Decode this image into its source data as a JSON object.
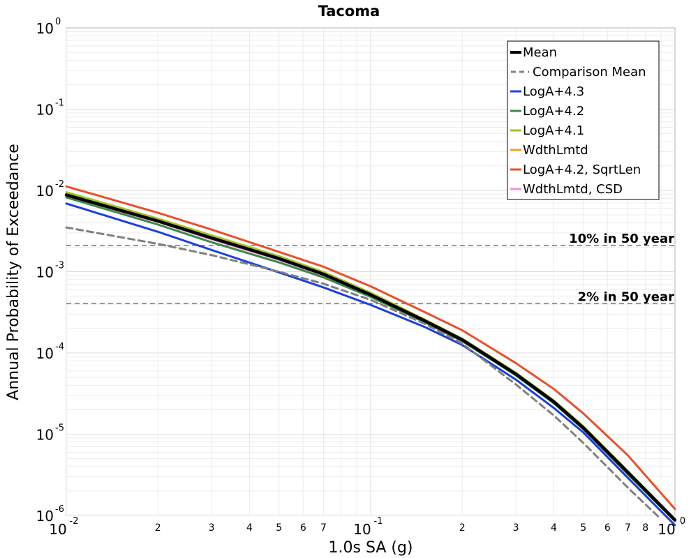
{
  "chart_data": {
    "type": "line",
    "title": "Tacoma",
    "xlabel": "1.0s SA (g)",
    "ylabel": "Annual Probability of Exceedance",
    "xscale": "log",
    "yscale": "log",
    "xlim": [
      0.01,
      1.0
    ],
    "ylim": [
      1e-06,
      1.0
    ],
    "grid": true,
    "legend_position": "top-right",
    "x_major_ticks": [
      {
        "base": "10",
        "exp": "-2",
        "value": 0.01
      },
      {
        "base": "10",
        "exp": "-1",
        "value": 0.1
      },
      {
        "base": "10",
        "exp": "0",
        "value": 1.0
      }
    ],
    "x_minor_ticks": [
      {
        "label": "2",
        "value": 0.02
      },
      {
        "label": "3",
        "value": 0.03
      },
      {
        "label": "4",
        "value": 0.04
      },
      {
        "label": "5",
        "value": 0.05
      },
      {
        "label": "6",
        "value": 0.06
      },
      {
        "label": "7",
        "value": 0.07
      },
      {
        "label": "2",
        "value": 0.2
      },
      {
        "label": "3",
        "value": 0.3
      },
      {
        "label": "4",
        "value": 0.4
      },
      {
        "label": "5",
        "value": 0.5
      },
      {
        "label": "6",
        "value": 0.6
      },
      {
        "label": "7",
        "value": 0.7
      },
      {
        "label": "8",
        "value": 0.8
      }
    ],
    "y_major_ticks": [
      {
        "base": "10",
        "exp": "0",
        "value": 1.0
      },
      {
        "base": "10",
        "exp": "-1",
        "value": 0.1
      },
      {
        "base": "10",
        "exp": "-2",
        "value": 0.01
      },
      {
        "base": "10",
        "exp": "-3",
        "value": 0.001
      },
      {
        "base": "10",
        "exp": "-4",
        "value": 0.0001
      },
      {
        "base": "10",
        "exp": "-5",
        "value": 1e-05
      },
      {
        "base": "10",
        "exp": "-6",
        "value": 1e-06
      }
    ],
    "reference_lines": [
      {
        "label": "10% in 50 year",
        "y": 0.0021,
        "color": "#808080"
      },
      {
        "label": "2% in 50 year",
        "y": 0.000404,
        "color": "#808080"
      }
    ],
    "series": [
      {
        "name": "Mean",
        "color": "#000000",
        "style": "solid",
        "legend_width": 4,
        "x": [
          0.01,
          0.02,
          0.03,
          0.05,
          0.07,
          0.1,
          0.15,
          0.2,
          0.3,
          0.4,
          0.5,
          0.7,
          1.0
        ],
        "y": [
          0.0088,
          0.0042,
          0.0026,
          0.00145,
          0.00093,
          0.00052,
          0.00025,
          0.000145,
          5.5e-05,
          2.5e-05,
          1.2e-05,
          3.4e-06,
          8.8e-07
        ]
      },
      {
        "name": "Comparison Mean",
        "color": "#808080",
        "style": "dashed",
        "legend_width": 3,
        "x": [
          0.01,
          0.02,
          0.03,
          0.05,
          0.07,
          0.1,
          0.15,
          0.2,
          0.3,
          0.4,
          0.5,
          0.7,
          0.9
        ],
        "y": [
          0.0035,
          0.0022,
          0.0016,
          0.001,
          0.00071,
          0.00045,
          0.00023,
          0.00013,
          4.1e-05,
          1.7e-05,
          7.8e-06,
          2.2e-06,
          9e-07
        ]
      },
      {
        "name": "LogA+4.3",
        "color": "#1a3fe0",
        "style": "solid",
        "legend_width": 3,
        "x": [
          0.01,
          0.02,
          0.03,
          0.05,
          0.07,
          0.1,
          0.15,
          0.2,
          0.3,
          0.4,
          0.5,
          0.7,
          1.0
        ],
        "y": [
          0.0069,
          0.0031,
          0.00185,
          0.00098,
          0.00064,
          0.00039,
          0.00021,
          0.000125,
          4.7e-05,
          2.1e-05,
          1.05e-05,
          2.9e-06,
          7.6e-07
        ]
      },
      {
        "name": "LogA+4.2",
        "color": "#3a8a4a",
        "style": "solid",
        "legend_width": 3,
        "x": [
          0.01,
          0.02,
          0.03,
          0.05,
          0.07,
          0.1,
          0.15,
          0.2,
          0.3,
          0.4,
          0.5,
          0.7,
          1.0
        ],
        "y": [
          0.0082,
          0.0038,
          0.0023,
          0.0013,
          0.00085,
          0.00049,
          0.00024,
          0.00014,
          5.3e-05,
          2.4e-05,
          1.15e-05,
          3.2e-06,
          8.5e-07
        ]
      },
      {
        "name": "LogA+4.1",
        "color": "#a8c020",
        "style": "solid",
        "legend_width": 3,
        "x": [
          0.01,
          0.02,
          0.03,
          0.05,
          0.07,
          0.1,
          0.15,
          0.2,
          0.3,
          0.4,
          0.5,
          0.7,
          1.0
        ],
        "y": [
          0.0095,
          0.0045,
          0.0028,
          0.00155,
          0.00099,
          0.00055,
          0.00026,
          0.00015,
          5.7e-05,
          2.6e-05,
          1.25e-05,
          3.5e-06,
          9e-07
        ]
      },
      {
        "name": "WdthLmtd",
        "color": "#f0a020",
        "style": "solid",
        "legend_width": 3,
        "x": [
          0.01,
          0.02,
          0.03,
          0.05,
          0.07,
          0.1,
          0.15,
          0.2,
          0.3,
          0.4,
          0.5,
          0.7,
          1.0
        ],
        "y": [
          0.009,
          0.0043,
          0.0027,
          0.0015,
          0.00096,
          0.00053,
          0.000255,
          0.000148,
          5.6e-05,
          2.55e-05,
          1.22e-05,
          3.4e-06,
          8.9e-07
        ]
      },
      {
        "name": "LogA+4.2, SqrtLen",
        "color": "#e8502a",
        "style": "solid",
        "legend_width": 3,
        "x": [
          0.01,
          0.02,
          0.03,
          0.05,
          0.07,
          0.1,
          0.15,
          0.2,
          0.3,
          0.4,
          0.5,
          0.7,
          1.0
        ],
        "y": [
          0.0112,
          0.0053,
          0.0033,
          0.00175,
          0.00115,
          0.00066,
          0.00032,
          0.00019,
          7.5e-05,
          3.6e-05,
          1.8e-05,
          5.5e-06,
          1.2e-06
        ]
      },
      {
        "name": "WdthLmtd, CSD",
        "color": "#f090d8",
        "style": "solid",
        "legend_width": 3,
        "x": [
          0.01,
          0.02,
          0.03,
          0.05,
          0.07,
          0.1,
          0.15,
          0.2,
          0.3,
          0.4,
          0.5,
          0.7,
          1.0
        ],
        "y": [
          0.0084,
          0.0041,
          0.0025,
          0.0014,
          0.0009,
          0.00051,
          0.000245,
          0.000143,
          5.4e-05,
          2.45e-05,
          1.18e-05,
          3.3e-06,
          8.7e-07
        ]
      }
    ]
  }
}
